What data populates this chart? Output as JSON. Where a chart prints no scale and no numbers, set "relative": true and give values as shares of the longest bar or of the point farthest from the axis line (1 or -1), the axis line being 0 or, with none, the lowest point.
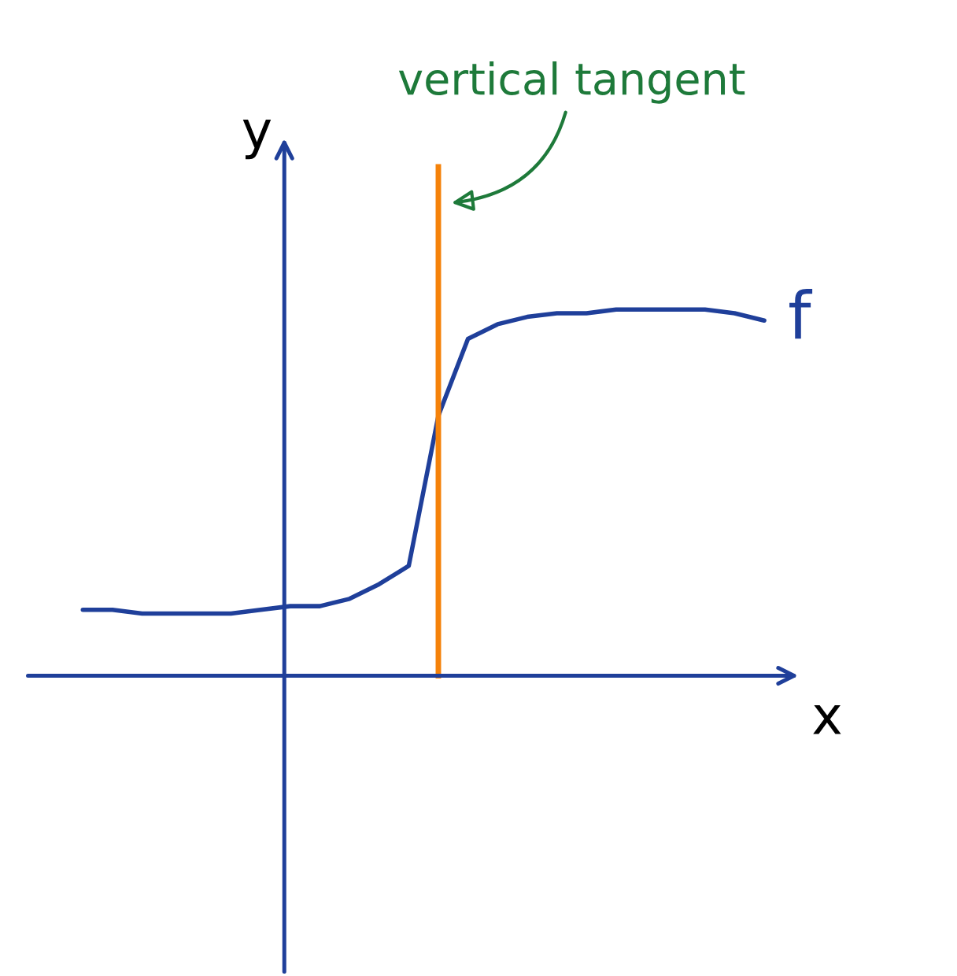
{
  "chart_data": {
    "type": "line",
    "relative": true,
    "xlabel": "x",
    "ylabel": "y",
    "categories": [
      null,
      null,
      null,
      null,
      null,
      null,
      null,
      null,
      null,
      null,
      null,
      null,
      null,
      null,
      null,
      null,
      null,
      null,
      null,
      null,
      null,
      null,
      null,
      null
    ],
    "series": [
      {
        "name": "f",
        "color": "#1f3f9a",
        "values": [
          0.18,
          0.18,
          0.17,
          0.17,
          0.17,
          0.17,
          0.18,
          0.19,
          0.19,
          0.21,
          0.25,
          0.3,
          0.71,
          0.92,
          0.96,
          0.98,
          0.99,
          0.99,
          1.0,
          1.0,
          1.0,
          1.0,
          0.99,
          0.97
        ]
      }
    ],
    "annotations": [
      "vertical tangent"
    ],
    "marker": "none",
    "line_style": "solid"
  }
}
